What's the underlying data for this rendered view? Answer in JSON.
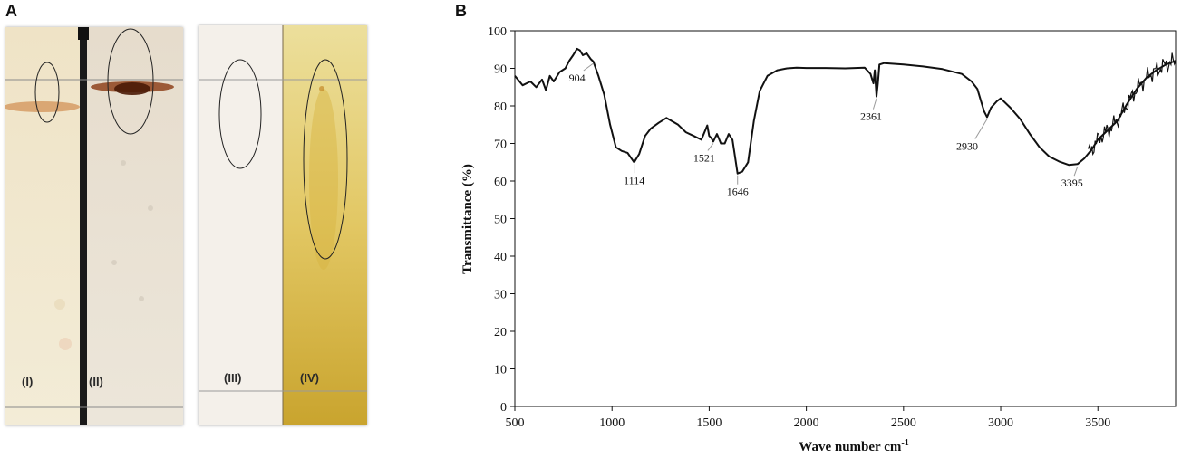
{
  "panels": {
    "a_label": "A",
    "b_label": "B"
  },
  "tlc": {
    "lanes": [
      "(I)",
      "(II)",
      "(III)",
      "(IV)"
    ]
  },
  "colors": {
    "plate1_left": "#f1e9cf",
    "plate1_right": "#e7dfd2",
    "plate2_left": "#f4f0ea",
    "plate2_right": "#d9be4a",
    "spot_brown": "#7a2a0c",
    "spectrum_line": "#111111"
  },
  "chart_data": {
    "type": "line",
    "xlabel": "Wave number  cm",
    "xlabel_sup": "-1",
    "ylabel": "Transmittance (%)",
    "xlim": [
      500,
      3900
    ],
    "ylim": [
      0,
      100
    ],
    "xticks": [
      500,
      1000,
      1500,
      2000,
      2500,
      3000,
      3500
    ],
    "yticks": [
      0,
      10,
      20,
      30,
      40,
      50,
      60,
      70,
      80,
      90,
      100
    ],
    "series": [
      {
        "x": [
          500,
          540,
          580,
          610,
          640,
          660,
          680,
          700,
          730,
          760,
          780,
          800,
          820,
          835,
          850,
          870,
          890,
          904,
          930,
          960,
          990,
          1020,
          1050,
          1080,
          1100,
          1114,
          1140,
          1170,
          1200,
          1240,
          1280,
          1300,
          1340,
          1380,
          1420,
          1460,
          1480,
          1490,
          1500,
          1510,
          1521,
          1540,
          1560,
          1580,
          1600,
          1620,
          1646,
          1670,
          1700,
          1730,
          1760,
          1800,
          1850,
          1900,
          1950,
          2000,
          2100,
          2200,
          2300,
          2330,
          2345,
          2352,
          2361,
          2368,
          2376,
          2400,
          2500,
          2600,
          2700,
          2800,
          2850,
          2880,
          2900,
          2915,
          2930,
          2950,
          2980,
          3000,
          3050,
          3100,
          3150,
          3200,
          3250,
          3300,
          3350,
          3395,
          3430,
          3470,
          3500,
          3550,
          3600,
          3650,
          3700,
          3750,
          3800,
          3850,
          3900
        ],
        "y": [
          88,
          85.5,
          86.5,
          85,
          87,
          84.2,
          88,
          86.5,
          89,
          90,
          92,
          93.5,
          95.2,
          94.8,
          93.5,
          94,
          92.5,
          91.8,
          88,
          83,
          75,
          69,
          68,
          67.5,
          66,
          65,
          67.2,
          72,
          74,
          75.5,
          76.8,
          76.2,
          75,
          73,
          72,
          71,
          73.5,
          74.8,
          72,
          71.5,
          70.5,
          72.5,
          70,
          70,
          72.5,
          71,
          62,
          62.5,
          65,
          76,
          84,
          88,
          89.5,
          90,
          90.2,
          90.1,
          90.1,
          90,
          90.2,
          88.5,
          86,
          89.5,
          82.5,
          86,
          91,
          91.4,
          91,
          90.5,
          89.8,
          88.5,
          86.5,
          84.5,
          81,
          78.5,
          77,
          79.5,
          81.2,
          82,
          79.5,
          76.5,
          72.5,
          69,
          66.5,
          65.2,
          64.3,
          64.5,
          66,
          68.5,
          71,
          73.5,
          76,
          80.5,
          84.5,
          87.5,
          89.5,
          91,
          92
        ]
      }
    ],
    "annotations": [
      {
        "text": "904",
        "x": 904,
        "y": 91.8
      },
      {
        "text": "1114",
        "x": 1114,
        "y": 65
      },
      {
        "text": "1521",
        "x": 1521,
        "y": 70.5
      },
      {
        "text": "1646",
        "x": 1646,
        "y": 62
      },
      {
        "text": "2361",
        "x": 2361,
        "y": 82.5
      },
      {
        "text": "2930",
        "x": 2930,
        "y": 77
      },
      {
        "text": "3395",
        "x": 3395,
        "y": 64.3
      }
    ]
  }
}
